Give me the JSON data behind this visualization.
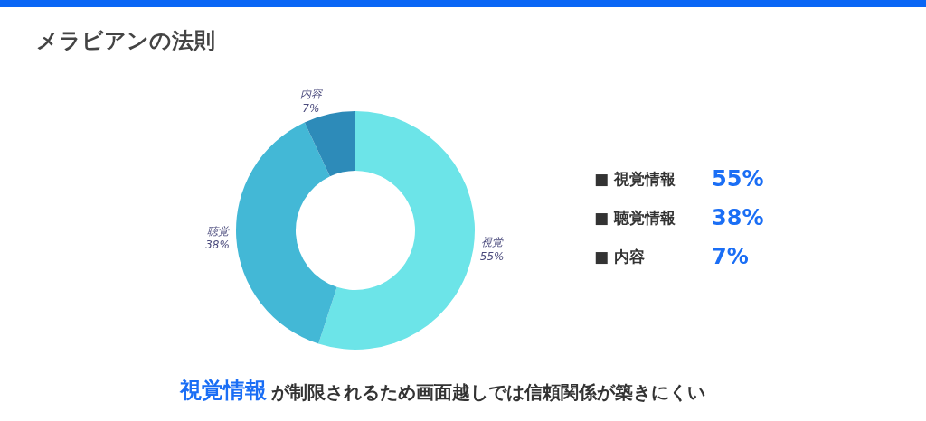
{
  "chart_data": {
    "type": "donut",
    "title": "メラビアンの法則",
    "categories": [
      "視覚",
      "聴覚",
      "内容"
    ],
    "values": [
      55,
      38,
      7
    ],
    "colors": [
      "#6ce4e8",
      "#43b8d6",
      "#2d8bb9"
    ],
    "value_labels": [
      "55%",
      "38%",
      "7%"
    ],
    "annotations": [
      "■ 視覚情報",
      "55%",
      "■ 聴覚情報",
      "38%",
      "■ 内容",
      "7%",
      "視覚情報",
      "が制限されるため画面越しでは信頼関係が築きにくい"
    ]
  }
}
